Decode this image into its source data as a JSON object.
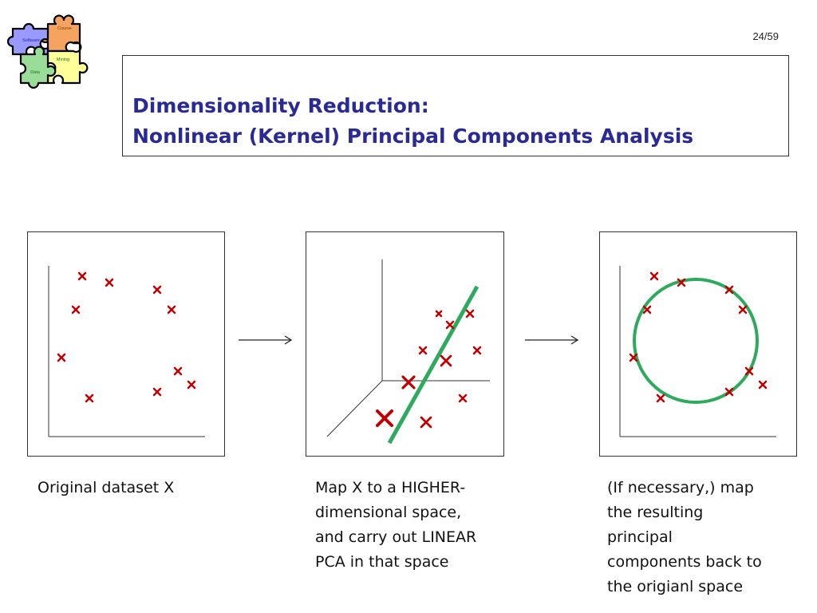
{
  "header": {
    "page_number": "24/59",
    "title_line1": "Dimensionality Reduction:",
    "title_line2": "Nonlinear (Kernel) Principal Components Analysis"
  },
  "logo": {
    "icon": "puzzle-logo-icon",
    "pieces": [
      "Course",
      "Software",
      "Mining",
      "Data"
    ],
    "colors": [
      "#f4a460",
      "#9999ff",
      "#ffff99",
      "#99dd99"
    ]
  },
  "colors": {
    "title": "#2a2a96",
    "marker": "#c00000",
    "component": "#2eaa5e"
  },
  "panels": [
    {
      "caption": [
        "Original dataset X"
      ]
    },
    {
      "caption": [
        "Map X to a HIGHER-",
        "dimensional space,",
        "and carry out LINEAR",
        "PCA in that space"
      ]
    },
    {
      "caption": [
        "(If necessary,) map",
        "the resulting",
        "principal",
        "components back to",
        "the origianl space"
      ]
    }
  ]
}
